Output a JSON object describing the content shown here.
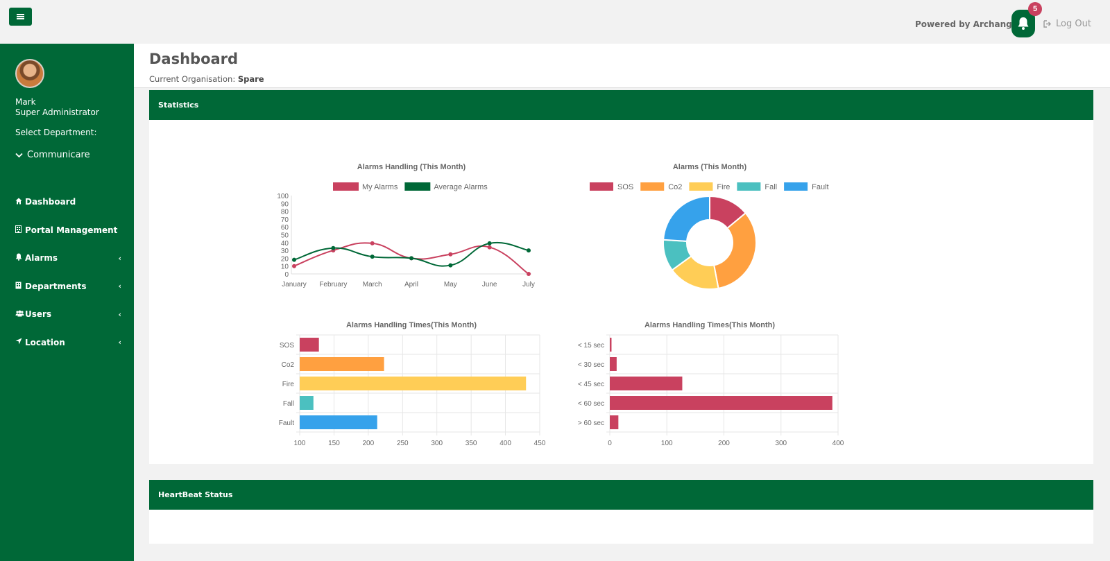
{
  "topbar": {
    "menu_icon": "hamburger-icon",
    "powered_by": "Powered by Archangel",
    "notification_count": "5",
    "logout_label": "Log Out"
  },
  "user": {
    "name": "Mark",
    "role": "Super Administrator"
  },
  "sidebar": {
    "department_label": "Select Department:",
    "department_value": "Communicare",
    "items": [
      {
        "label": "Dashboard",
        "icon": "home-icon",
        "has_submenu": false
      },
      {
        "label": "Portal Management",
        "icon": "building-icon",
        "has_submenu": false
      },
      {
        "label": "Alarms",
        "icon": "bell-icon",
        "has_submenu": true
      },
      {
        "label": "Departments",
        "icon": "building-icon",
        "has_submenu": true
      },
      {
        "label": "Users",
        "icon": "users-icon",
        "has_submenu": true
      },
      {
        "label": "Location",
        "icon": "location-arrow-icon",
        "has_submenu": true
      }
    ]
  },
  "header": {
    "title": "Dashboard",
    "org_label": "Current Organisation:",
    "org_value": "Spare"
  },
  "panels": {
    "statistics": "Statistics",
    "heartbeat": "HeartBeat Status"
  },
  "colors": {
    "brand": "#006837",
    "sos": "#c9415f",
    "co2": "#ffa040",
    "fire": "#ffcd56",
    "fall": "#4bc0c0",
    "fault": "#36a2eb"
  },
  "chart_data": [
    {
      "type": "line",
      "title": "Alarms Handling (This Month)",
      "categories": [
        "January",
        "February",
        "March",
        "April",
        "May",
        "June",
        "July"
      ],
      "series": [
        {
          "name": "My Alarms",
          "values": [
            10,
            30,
            39,
            20,
            25,
            34,
            0
          ]
        },
        {
          "name": "Average Alarms",
          "values": [
            18,
            33,
            22,
            20,
            11,
            39,
            30
          ]
        }
      ],
      "ylim": [
        0,
        100
      ],
      "yticks": [
        0,
        10,
        20,
        30,
        40,
        50,
        60,
        70,
        80,
        90,
        100
      ],
      "legend": "top"
    },
    {
      "type": "pie",
      "title": "Alarms (This Month)",
      "categories": [
        "SOS",
        "Co2",
        "Fire",
        "Fall",
        "Fault"
      ],
      "values": [
        14,
        33,
        18,
        11,
        24
      ],
      "legend": "top"
    },
    {
      "type": "bar",
      "title": "Alarms Handling Times(This Month)",
      "orientation": "horizontal",
      "categories": [
        "SOS",
        "Co2",
        "Fire",
        "Fall",
        "Fault"
      ],
      "values": [
        128,
        223,
        430,
        120,
        213
      ],
      "xlim": [
        100,
        450
      ],
      "xticks": [
        100,
        150,
        200,
        250,
        300,
        350,
        400,
        450
      ]
    },
    {
      "type": "bar",
      "title": "Alarms Handling Times(This Month)",
      "orientation": "horizontal",
      "categories": [
        "< 15 sec",
        "< 30 sec",
        "< 45 sec",
        "< 60 sec",
        "> 60 sec"
      ],
      "values": [
        3,
        12,
        127,
        390,
        15
      ],
      "xlim": [
        0,
        400
      ],
      "xticks": [
        0,
        100,
        200,
        300,
        400
      ]
    }
  ]
}
